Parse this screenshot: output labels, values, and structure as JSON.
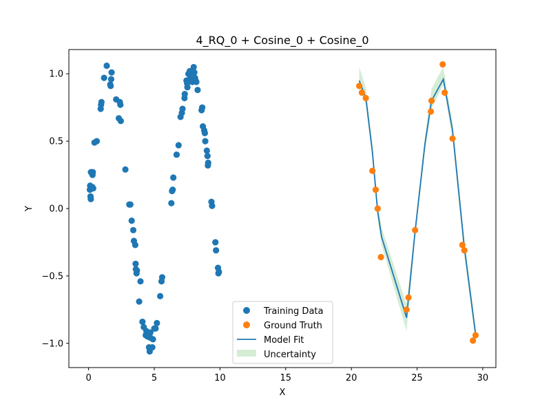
{
  "chart_data": {
    "type": "scatter",
    "title": "4_RQ_0 + Cosine_0 + Cosine_0",
    "xlabel": "X",
    "ylabel": "Y",
    "xlim": [
      -1.5,
      31.0
    ],
    "ylim": [
      -1.18,
      1.18
    ],
    "xticks": [
      0,
      5,
      10,
      15,
      20,
      25,
      30
    ],
    "yticks": [
      -1.0,
      -0.5,
      0.0,
      0.5,
      1.0
    ],
    "xtick_labels": [
      "0",
      "5",
      "10",
      "15",
      "20",
      "25",
      "30"
    ],
    "ytick_labels": [
      "−1.0",
      "−0.5",
      "0.0",
      "0.5",
      "1.0"
    ],
    "grid": false,
    "legend_position": "lower center",
    "colors": {
      "training": "#1f77b4",
      "ground_truth": "#ff7f0e",
      "model_fit": "#1f77b4",
      "uncertainty": "#2ca02c"
    },
    "series": [
      {
        "name": "Training Data",
        "kind": "scatter",
        "points": [
          [
            0.1,
            0.14
          ],
          [
            0.12,
            0.17
          ],
          [
            0.15,
            0.09
          ],
          [
            0.17,
            0.07
          ],
          [
            0.18,
            0.27
          ],
          [
            0.2,
            0.15
          ],
          [
            0.28,
            0.16
          ],
          [
            0.3,
            0.25
          ],
          [
            0.32,
            0.27
          ],
          [
            0.35,
            0.15
          ],
          [
            0.45,
            0.49
          ],
          [
            0.62,
            0.5
          ],
          [
            0.92,
            0.74
          ],
          [
            0.95,
            0.77
          ],
          [
            0.98,
            0.79
          ],
          [
            1.18,
            0.97
          ],
          [
            1.38,
            1.06
          ],
          [
            1.65,
            0.92
          ],
          [
            1.68,
            0.91
          ],
          [
            1.72,
            0.96
          ],
          [
            1.75,
            1.01
          ],
          [
            2.1,
            0.81
          ],
          [
            2.3,
            0.67
          ],
          [
            2.38,
            0.79
          ],
          [
            2.42,
            0.77
          ],
          [
            2.45,
            0.65
          ],
          [
            2.8,
            0.29
          ],
          [
            3.1,
            0.03
          ],
          [
            3.18,
            0.03
          ],
          [
            3.28,
            -0.09
          ],
          [
            3.4,
            -0.16
          ],
          [
            3.45,
            -0.24
          ],
          [
            3.55,
            -0.27
          ],
          [
            3.58,
            -0.41
          ],
          [
            3.6,
            -0.45
          ],
          [
            3.65,
            -0.48
          ],
          [
            3.68,
            -0.46
          ],
          [
            3.85,
            -0.69
          ],
          [
            3.95,
            -0.54
          ],
          [
            4.1,
            -0.84
          ],
          [
            4.2,
            -0.88
          ],
          [
            4.35,
            -0.94
          ],
          [
            4.4,
            -0.91
          ],
          [
            4.5,
            -0.95
          ],
          [
            4.55,
            -0.93
          ],
          [
            4.6,
            -1.03
          ],
          [
            4.65,
            -1.06
          ],
          [
            4.7,
            -0.92
          ],
          [
            4.72,
            -0.96
          ],
          [
            4.85,
            -1.03
          ],
          [
            4.9,
            -0.97
          ],
          [
            5.0,
            -0.89
          ],
          [
            5.1,
            -0.89
          ],
          [
            5.2,
            -0.85
          ],
          [
            5.45,
            -0.65
          ],
          [
            5.55,
            -0.54
          ],
          [
            5.6,
            -0.51
          ],
          [
            6.3,
            0.04
          ],
          [
            6.35,
            0.13
          ],
          [
            6.4,
            0.14
          ],
          [
            6.45,
            0.23
          ],
          [
            6.7,
            0.4
          ],
          [
            6.85,
            0.47
          ],
          [
            7.0,
            0.68
          ],
          [
            7.1,
            0.71
          ],
          [
            7.15,
            0.74
          ],
          [
            7.3,
            0.82
          ],
          [
            7.32,
            0.85
          ],
          [
            7.45,
            0.95
          ],
          [
            7.5,
            0.93
          ],
          [
            7.52,
            0.9
          ],
          [
            7.6,
            1.0
          ],
          [
            7.7,
            1.02
          ],
          [
            7.75,
            0.98
          ],
          [
            7.85,
            0.96
          ],
          [
            7.9,
            0.94
          ],
          [
            7.95,
            1.0
          ],
          [
            8.0,
            1.05
          ],
          [
            8.05,
            1.01
          ],
          [
            8.1,
            0.97
          ],
          [
            8.15,
            0.95
          ],
          [
            8.2,
            0.94
          ],
          [
            8.3,
            0.88
          ],
          [
            8.6,
            0.73
          ],
          [
            8.65,
            0.75
          ],
          [
            8.7,
            0.61
          ],
          [
            8.8,
            0.58
          ],
          [
            8.85,
            0.56
          ],
          [
            8.88,
            0.5
          ],
          [
            9.0,
            0.43
          ],
          [
            9.05,
            0.39
          ],
          [
            9.08,
            0.32
          ],
          [
            9.1,
            0.34
          ],
          [
            9.35,
            0.05
          ],
          [
            9.4,
            0.02
          ],
          [
            9.65,
            -0.25
          ],
          [
            9.7,
            -0.31
          ],
          [
            9.85,
            -0.44
          ],
          [
            9.88,
            -0.48
          ],
          [
            9.92,
            -0.47
          ]
        ]
      },
      {
        "name": "Ground Truth",
        "kind": "scatter",
        "points": [
          [
            20.6,
            0.91
          ],
          [
            20.8,
            0.86
          ],
          [
            21.1,
            0.82
          ],
          [
            21.6,
            0.28
          ],
          [
            21.85,
            0.14
          ],
          [
            22.0,
            0.0
          ],
          [
            22.25,
            -0.36
          ],
          [
            24.2,
            -0.75
          ],
          [
            24.35,
            -0.66
          ],
          [
            24.85,
            -0.16
          ],
          [
            26.05,
            0.72
          ],
          [
            26.1,
            0.8
          ],
          [
            26.95,
            1.07
          ],
          [
            27.1,
            0.86
          ],
          [
            27.7,
            0.52
          ],
          [
            28.45,
            -0.27
          ],
          [
            28.6,
            -0.31
          ],
          [
            29.25,
            -0.98
          ],
          [
            29.45,
            -0.94
          ]
        ]
      },
      {
        "name": "Model Fit",
        "kind": "line",
        "points": [
          [
            20.6,
            0.95
          ],
          [
            21.1,
            0.82
          ],
          [
            21.6,
            0.42
          ],
          [
            22.0,
            -0.02
          ],
          [
            22.3,
            -0.21
          ],
          [
            24.2,
            -0.81
          ],
          [
            24.85,
            -0.17
          ],
          [
            25.6,
            0.48
          ],
          [
            26.1,
            0.8
          ],
          [
            27.0,
            0.96
          ],
          [
            27.7,
            0.58
          ],
          [
            28.6,
            -0.29
          ],
          [
            29.45,
            -0.93
          ]
        ]
      },
      {
        "name": "Uncertainty",
        "kind": "band",
        "points": [
          [
            20.6,
            0.95,
            0.88,
            1.05
          ],
          [
            21.1,
            0.82,
            0.78,
            0.9
          ],
          [
            21.6,
            0.42,
            0.37,
            0.48
          ],
          [
            22.0,
            -0.02,
            -0.08,
            0.04
          ],
          [
            22.3,
            -0.21,
            -0.27,
            -0.14
          ],
          [
            24.2,
            -0.81,
            -0.91,
            -0.71
          ],
          [
            24.85,
            -0.17,
            -0.22,
            -0.12
          ],
          [
            25.6,
            0.48,
            0.42,
            0.53
          ],
          [
            26.1,
            0.8,
            0.74,
            0.89
          ],
          [
            27.0,
            0.96,
            0.92,
            1.05
          ],
          [
            27.7,
            0.58,
            0.51,
            0.64
          ],
          [
            28.6,
            -0.29,
            -0.36,
            -0.23
          ],
          [
            29.45,
            -0.93,
            -0.98,
            -0.88
          ]
        ]
      }
    ]
  }
}
